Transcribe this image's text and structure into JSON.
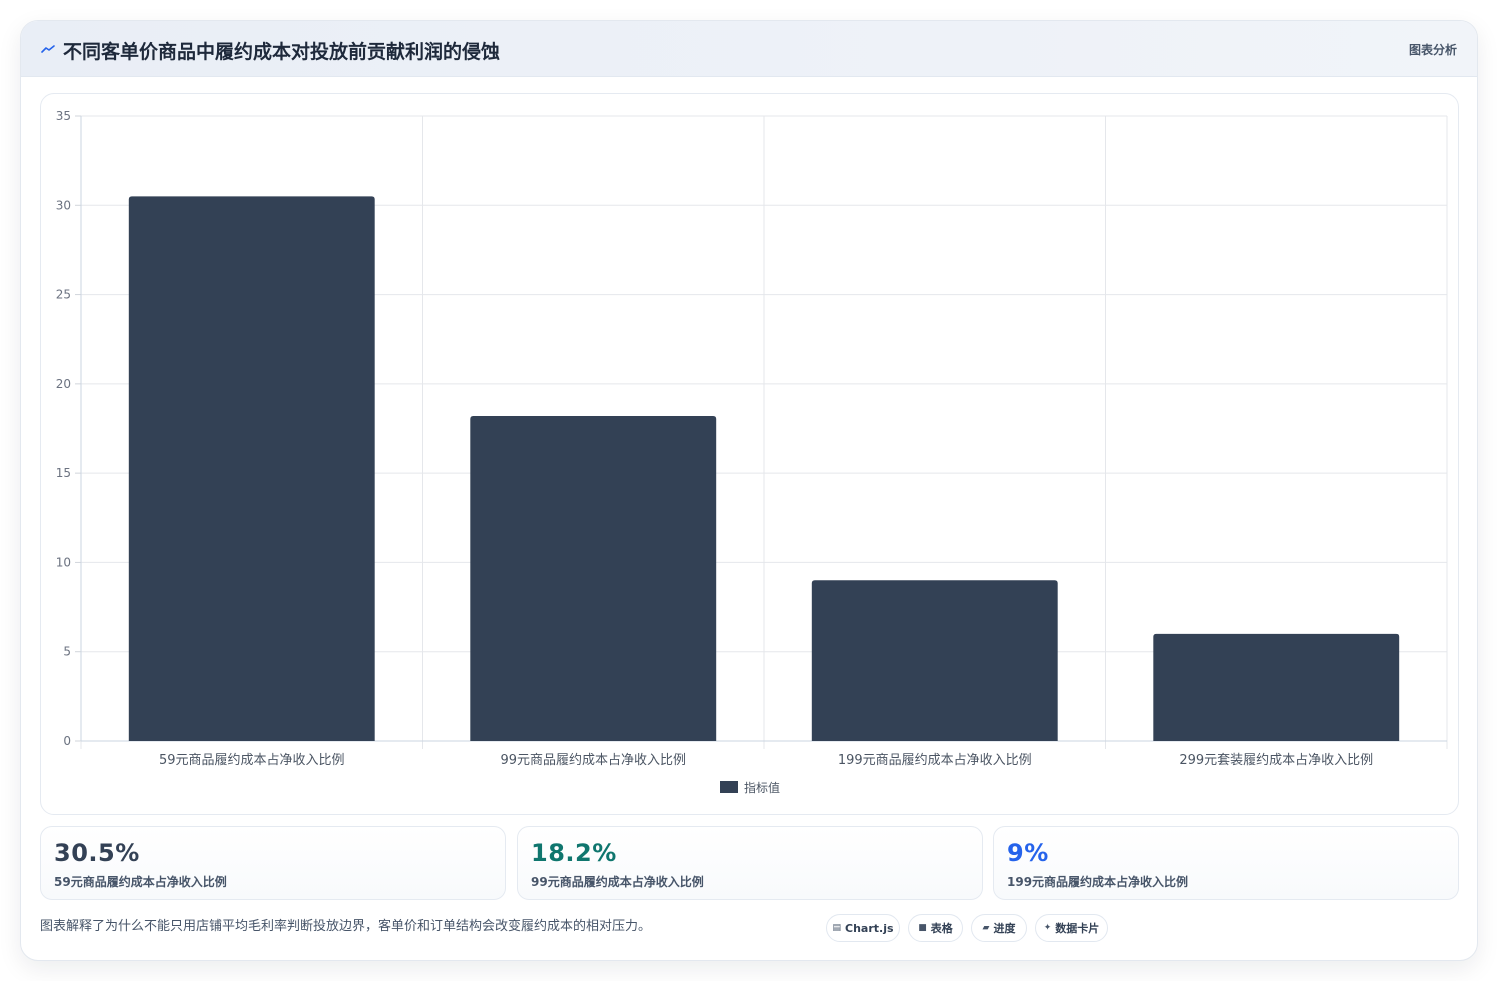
{
  "header": {
    "icon": "chart-line-icon",
    "title": "不同客单价商品中履约成本对投放前贡献利润的侵蚀",
    "tag": "图表分析"
  },
  "chart_data": {
    "type": "bar",
    "categories": [
      "59元商品履约成本占净收入比例",
      "99元商品履约成本占净收入比例",
      "199元商品履约成本占净收入比例",
      "299元套装履约成本占净收入比例"
    ],
    "series": [
      {
        "name": "指标值",
        "values": [
          30.5,
          18.2,
          9,
          6
        ]
      }
    ],
    "ylim": [
      0,
      35
    ],
    "yticks": [
      "0",
      "5",
      "10",
      "15",
      "20",
      "25",
      "30",
      "35"
    ],
    "grid": true,
    "legend": "bottom-center",
    "bar_color": "#334155"
  },
  "stats": [
    {
      "value": "30.5%",
      "label": "59元商品履约成本占净收入比例",
      "color": "#334155"
    },
    {
      "value": "18.2%",
      "label": "99元商品履约成本占净收入比例",
      "color": "#0f766e"
    },
    {
      "value": "9%",
      "label": "199元商品履约成本占净收入比例",
      "color": "#2563eb"
    }
  ],
  "footer": {
    "note": "图表解释了为什么不能只用店铺平均毛利率判断投放边界，客单价和订单结构会改变履约成本的相对压力。",
    "pills": [
      {
        "icon": "chart-icon",
        "glyph": "▤",
        "label": "Chart.js"
      },
      {
        "icon": "table-icon",
        "glyph": "■",
        "label": "表格"
      },
      {
        "icon": "progress-icon",
        "glyph": "▰",
        "label": "进度"
      },
      {
        "icon": "data-card-icon",
        "glyph": "✦",
        "label": "数据卡片"
      }
    ]
  }
}
